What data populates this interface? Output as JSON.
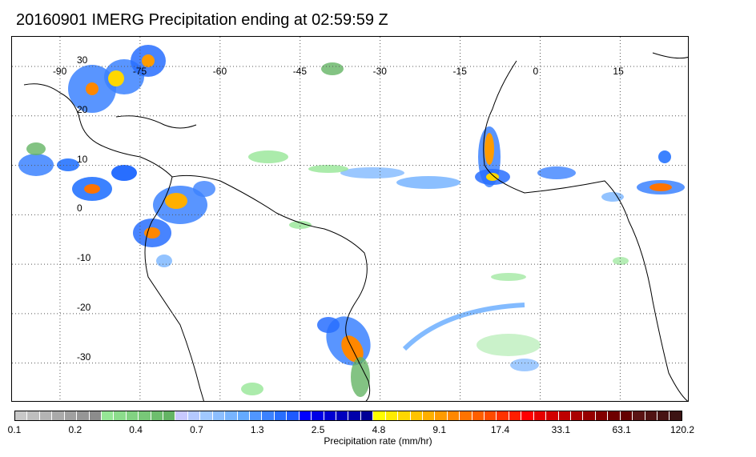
{
  "title": "20160901 IMERG Precipitation ending at 02:59:59 Z",
  "map": {
    "lon_range": [
      -99,
      28
    ],
    "lat_range": [
      -38,
      36
    ],
    "lon_ticks": [
      {
        "value": -90,
        "label": "-90"
      },
      {
        "value": -75,
        "label": "-75"
      },
      {
        "value": -60,
        "label": "-60"
      },
      {
        "value": -45,
        "label": "-45"
      },
      {
        "value": -30,
        "label": "-30"
      },
      {
        "value": -15,
        "label": "-15"
      },
      {
        "value": 0,
        "label": "0"
      },
      {
        "value": 15,
        "label": "15"
      }
    ],
    "lat_ticks": [
      {
        "value": 30,
        "label": "30"
      },
      {
        "value": 20,
        "label": "20"
      },
      {
        "value": 10,
        "label": "10"
      },
      {
        "value": 0,
        "label": "0"
      },
      {
        "value": -10,
        "label": "-10"
      },
      {
        "value": -20,
        "label": "-20"
      },
      {
        "value": -30,
        "label": "-30"
      }
    ]
  },
  "colorbar": {
    "label": "Precipitation rate (mm/hr)",
    "colors": [
      "#c8c8c8",
      "#bebebe",
      "#b4b4b4",
      "#aaaaaa",
      "#a0a0a0",
      "#969696",
      "#8c8c8c",
      "#96e696",
      "#8cdc8c",
      "#82d282",
      "#78c878",
      "#6ebe6e",
      "#64b464",
      "#c8c8ff",
      "#b4c8ff",
      "#a0c8ff",
      "#8cbeff",
      "#78b4ff",
      "#64aaff",
      "#5096ff",
      "#3c82ff",
      "#286eff",
      "#1e5aff",
      "#0000ff",
      "#0000e6",
      "#0000d2",
      "#0000be",
      "#0000aa",
      "#000096",
      "#ffff00",
      "#ffeb00",
      "#ffd700",
      "#ffc300",
      "#ffaf00",
      "#ff9b00",
      "#ff8700",
      "#ff7300",
      "#ff5f00",
      "#ff4b00",
      "#ff3200",
      "#ff1e00",
      "#ff0000",
      "#e60000",
      "#d20000",
      "#be0000",
      "#aa0000",
      "#960000",
      "#820000",
      "#6e0000",
      "#640000",
      "#5a1414",
      "#501414",
      "#461414",
      "#3c1414"
    ],
    "ticks": [
      "0.1",
      "0.2",
      "0.4",
      "0.7",
      "1.3",
      "2.5",
      "4.8",
      "9.1",
      "17.4",
      "33.1",
      "63.1",
      "120.2"
    ]
  }
}
